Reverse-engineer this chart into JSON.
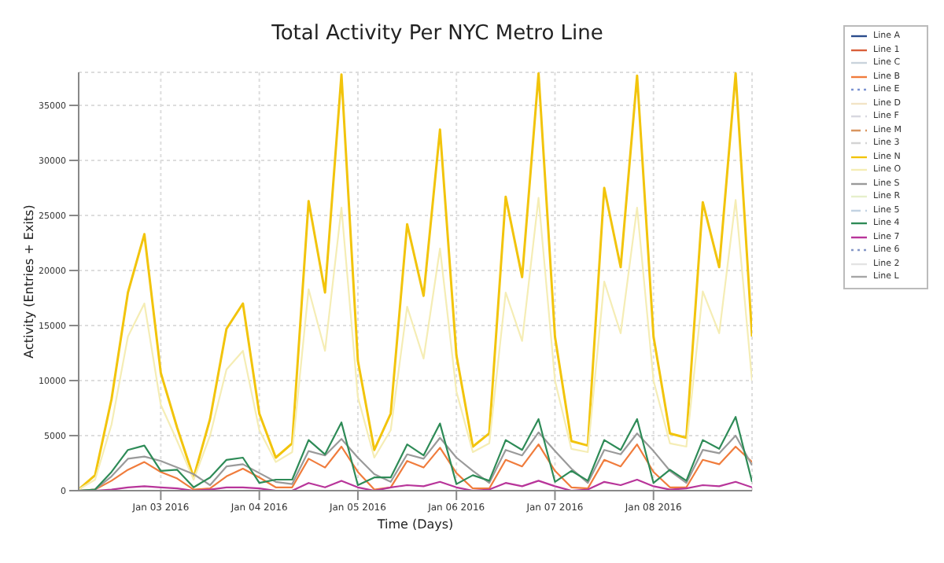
{
  "chart_data": {
    "type": "line",
    "title": "Total Activity Per NYC Metro Line",
    "xlabel": "Time (Days)",
    "ylabel": "Activity (Entries + Exits)",
    "x": [
      "2016-01-02T04:00",
      "2016-01-02T08:00",
      "2016-01-02T12:00",
      "2016-01-02T16:00",
      "2016-01-02T20:00",
      "2016-01-03T00:00",
      "2016-01-03T04:00",
      "2016-01-03T08:00",
      "2016-01-03T12:00",
      "2016-01-03T16:00",
      "2016-01-03T20:00",
      "2016-01-04T00:00",
      "2016-01-04T04:00",
      "2016-01-04T08:00",
      "2016-01-04T12:00",
      "2016-01-04T16:00",
      "2016-01-04T20:00",
      "2016-01-05T00:00",
      "2016-01-05T04:00",
      "2016-01-05T08:00",
      "2016-01-05T12:00",
      "2016-01-05T16:00",
      "2016-01-05T20:00",
      "2016-01-06T00:00",
      "2016-01-06T04:00",
      "2016-01-06T08:00",
      "2016-01-06T12:00",
      "2016-01-06T16:00",
      "2016-01-06T20:00",
      "2016-01-07T00:00",
      "2016-01-07T04:00",
      "2016-01-07T08:00",
      "2016-01-07T12:00",
      "2016-01-07T16:00",
      "2016-01-07T20:00",
      "2016-01-08T00:00",
      "2016-01-08T04:00",
      "2016-01-08T08:00",
      "2016-01-08T12:00",
      "2016-01-08T16:00",
      "2016-01-08T20:00",
      "2016-01-09T00:00"
    ],
    "xlim": [
      "2016-01-02T04:00",
      "2016-01-09T00:00"
    ],
    "xticks": [
      {
        "value": "2016-01-03",
        "label": "Jan 03 2016"
      },
      {
        "value": "2016-01-04",
        "label": "Jan 04 2016"
      },
      {
        "value": "2016-01-05",
        "label": "Jan 05 2016"
      },
      {
        "value": "2016-01-06",
        "label": "Jan 06 2016"
      },
      {
        "value": "2016-01-07",
        "label": "Jan 07 2016"
      },
      {
        "value": "2016-01-08",
        "label": "Jan 08 2016"
      }
    ],
    "ylim": [
      0,
      38000
    ],
    "yticks": [
      0,
      5000,
      10000,
      15000,
      20000,
      25000,
      30000,
      35000
    ],
    "grid": true,
    "legend": "right",
    "marker": "none",
    "series": [
      {
        "name": "Line A",
        "color": "#2b4c8c",
        "values": [
          null,
          null,
          null,
          null,
          null,
          null,
          null,
          null,
          null,
          null,
          null,
          null,
          null,
          null,
          null,
          null,
          null,
          null,
          null,
          null,
          null,
          null,
          null,
          null,
          null,
          null,
          null,
          null,
          null,
          null,
          null,
          null,
          null,
          null,
          null,
          null,
          null,
          null,
          null,
          null,
          null,
          null
        ]
      },
      {
        "name": "Line 1",
        "color": "#d9603b",
        "values": [
          null,
          null,
          null,
          null,
          null,
          null,
          null,
          null,
          null,
          null,
          null,
          null,
          null,
          null,
          null,
          null,
          null,
          null,
          null,
          null,
          null,
          null,
          null,
          null,
          null,
          null,
          null,
          null,
          null,
          null,
          null,
          null,
          null,
          null,
          null,
          null,
          null,
          null,
          null,
          null,
          null,
          null
        ]
      },
      {
        "name": "Line C",
        "color": "#c9d3dc",
        "values": [
          null,
          null,
          null,
          null,
          null,
          null,
          null,
          null,
          null,
          null,
          null,
          null,
          null,
          null,
          null,
          null,
          null,
          null,
          null,
          null,
          null,
          null,
          null,
          null,
          null,
          null,
          null,
          null,
          null,
          null,
          null,
          null,
          null,
          null,
          null,
          null,
          null,
          null,
          null,
          null,
          null,
          null
        ]
      },
      {
        "name": "Line B",
        "color": "#f07c3c",
        "values": [
          0,
          100,
          900,
          1900,
          2600,
          1700,
          1100,
          100,
          200,
          1300,
          2000,
          1200,
          300,
          300,
          2900,
          2100,
          4000,
          1700,
          100,
          300,
          2700,
          2100,
          3900,
          1600,
          200,
          200,
          2800,
          2200,
          4200,
          1800,
          300,
          200,
          2800,
          2200,
          4200,
          1700,
          300,
          300,
          2800,
          2400,
          4000,
          2600
        ]
      },
      {
        "name": "Line E",
        "color": "#7b93d1",
        "line_style": "dotted",
        "values": [
          null,
          null,
          null,
          null,
          null,
          null,
          null,
          null,
          null,
          null,
          null,
          null,
          null,
          null,
          null,
          null,
          null,
          null,
          null,
          null,
          null,
          null,
          null,
          null,
          null,
          null,
          null,
          null,
          null,
          null,
          null,
          null,
          null,
          null,
          null,
          null,
          null,
          null,
          null,
          null,
          null,
          null
        ]
      },
      {
        "name": "Line D",
        "color": "#f2e4c6",
        "values": [
          null,
          null,
          null,
          null,
          null,
          null,
          null,
          null,
          null,
          null,
          null,
          null,
          null,
          null,
          null,
          null,
          null,
          null,
          null,
          null,
          null,
          null,
          null,
          null,
          null,
          null,
          null,
          null,
          null,
          null,
          null,
          null,
          null,
          null,
          null,
          null,
          null,
          null,
          null,
          null,
          null,
          null
        ]
      },
      {
        "name": "Line F",
        "color": "#d8d8e0",
        "line_style": "dashed",
        "values": [
          null,
          null,
          null,
          null,
          null,
          null,
          null,
          null,
          null,
          null,
          null,
          null,
          null,
          null,
          null,
          null,
          null,
          null,
          null,
          null,
          null,
          null,
          null,
          null,
          null,
          null,
          null,
          null,
          null,
          null,
          null,
          null,
          null,
          null,
          null,
          null,
          null,
          null,
          null,
          null,
          null,
          null
        ]
      },
      {
        "name": "Line M",
        "color": "#d9955f",
        "line_style": "dashed",
        "values": [
          null,
          null,
          null,
          null,
          null,
          null,
          null,
          null,
          null,
          null,
          null,
          null,
          null,
          null,
          null,
          null,
          null,
          null,
          null,
          null,
          null,
          null,
          null,
          null,
          null,
          null,
          null,
          null,
          null,
          null,
          null,
          null,
          null,
          null,
          null,
          null,
          null,
          null,
          null,
          null,
          null,
          null
        ]
      },
      {
        "name": "Line 3",
        "color": "#d4d4d4",
        "line_style": "dashed",
        "values": [
          null,
          null,
          null,
          null,
          null,
          null,
          null,
          null,
          null,
          null,
          null,
          null,
          null,
          null,
          null,
          null,
          null,
          null,
          null,
          null,
          null,
          null,
          null,
          null,
          null,
          null,
          null,
          null,
          null,
          null,
          null,
          null,
          null,
          null,
          null,
          null,
          null,
          null,
          null,
          null,
          null,
          null
        ]
      },
      {
        "name": "Line N",
        "color": "#f2c40c",
        "values": [
          100,
          1400,
          8300,
          18000,
          23300,
          10700,
          5700,
          1200,
          6500,
          14700,
          17000,
          7000,
          3000,
          4300,
          26300,
          18000,
          37800,
          11800,
          3700,
          7000,
          24200,
          17700,
          32800,
          12300,
          4000,
          5200,
          26700,
          19400,
          37900,
          14000,
          4500,
          4100,
          27500,
          20300,
          37700,
          14000,
          5200,
          4800,
          26200,
          20300,
          37900,
          14000
        ]
      },
      {
        "name": "Line O",
        "color": "#f5edb5",
        "values": [
          100,
          1000,
          6000,
          14000,
          17000,
          7800,
          4500,
          1000,
          5000,
          11000,
          12700,
          5500,
          2600,
          3500,
          18300,
          12700,
          25700,
          8500,
          3000,
          5500,
          16700,
          12000,
          22000,
          9000,
          3500,
          4300,
          18000,
          13600,
          26600,
          10000,
          3800,
          3500,
          19000,
          14300,
          25700,
          10000,
          4300,
          4000,
          18100,
          14300,
          26400,
          10000
        ]
      },
      {
        "name": "Line S",
        "color": "#9a9a9a",
        "values": [
          0,
          100,
          1300,
          2900,
          3100,
          2700,
          2100,
          1500,
          500,
          2200,
          2400,
          1600,
          800,
          600,
          3600,
          3200,
          4700,
          3000,
          1500,
          800,
          3300,
          2900,
          4800,
          3000,
          1800,
          700,
          3700,
          3200,
          5300,
          3600,
          2000,
          700,
          3700,
          3300,
          5200,
          3600,
          1800,
          700,
          3700,
          3400,
          5000,
          2300
        ]
      },
      {
        "name": "Line R",
        "color": "#e6efcb",
        "values": [
          null,
          null,
          null,
          null,
          null,
          null,
          null,
          null,
          null,
          null,
          null,
          null,
          null,
          null,
          null,
          null,
          null,
          null,
          null,
          null,
          null,
          null,
          null,
          null,
          null,
          null,
          null,
          null,
          null,
          null,
          null,
          null,
          null,
          null,
          null,
          null,
          null,
          null,
          null,
          null,
          null,
          null
        ]
      },
      {
        "name": "Line 5",
        "color": "#c3d3e2",
        "line_style": "dashed",
        "values": [
          null,
          null,
          null,
          null,
          null,
          null,
          null,
          null,
          null,
          null,
          null,
          null,
          null,
          null,
          null,
          null,
          null,
          null,
          null,
          null,
          null,
          null,
          null,
          null,
          null,
          null,
          null,
          null,
          null,
          null,
          null,
          null,
          null,
          null,
          null,
          null,
          null,
          null,
          null,
          null,
          null,
          null
        ]
      },
      {
        "name": "Line 4",
        "color": "#2e8b57",
        "values": [
          0,
          100,
          1700,
          3700,
          4100,
          1800,
          1900,
          300,
          1200,
          2800,
          3000,
          700,
          1000,
          1000,
          4600,
          3300,
          6200,
          500,
          1200,
          1200,
          4200,
          3200,
          6100,
          600,
          1400,
          900,
          4600,
          3700,
          6500,
          800,
          1800,
          900,
          4600,
          3700,
          6500,
          700,
          1900,
          900,
          4600,
          3800,
          6700,
          800
        ]
      },
      {
        "name": "Line 7",
        "color": "#b8359a",
        "values": [
          0,
          0,
          100,
          300,
          400,
          300,
          200,
          0,
          100,
          300,
          300,
          200,
          0,
          0,
          700,
          300,
          900,
          300,
          0,
          300,
          500,
          400,
          800,
          300,
          0,
          100,
          700,
          400,
          900,
          400,
          0,
          100,
          800,
          500,
          1000,
          400,
          100,
          200,
          500,
          400,
          800,
          300
        ]
      },
      {
        "name": "Line 6",
        "color": "#8597c7",
        "line_style": "dotted",
        "values": [
          null,
          null,
          null,
          null,
          null,
          null,
          null,
          null,
          null,
          null,
          null,
          null,
          null,
          null,
          null,
          null,
          null,
          null,
          null,
          null,
          null,
          null,
          null,
          null,
          null,
          null,
          null,
          null,
          null,
          null,
          null,
          null,
          null,
          null,
          null,
          null,
          null,
          null,
          null,
          null,
          null,
          null
        ]
      },
      {
        "name": "Line 2",
        "color": "#e3e3e3",
        "values": [
          null,
          null,
          null,
          null,
          null,
          null,
          null,
          null,
          null,
          null,
          null,
          null,
          null,
          null,
          null,
          null,
          null,
          null,
          null,
          null,
          null,
          null,
          null,
          null,
          null,
          null,
          null,
          null,
          null,
          null,
          null,
          null,
          null,
          null,
          null,
          null,
          null,
          null,
          null,
          null,
          null,
          null
        ]
      },
      {
        "name": "Line L",
        "color": "#a6a6a6",
        "values": [
          null,
          null,
          null,
          null,
          null,
          null,
          null,
          null,
          null,
          null,
          null,
          null,
          null,
          null,
          null,
          null,
          null,
          null,
          null,
          null,
          null,
          null,
          null,
          null,
          null,
          null,
          null,
          null,
          null,
          null,
          null,
          null,
          null,
          null,
          null,
          null,
          null,
          null,
          null,
          null,
          null,
          null
        ]
      }
    ]
  }
}
